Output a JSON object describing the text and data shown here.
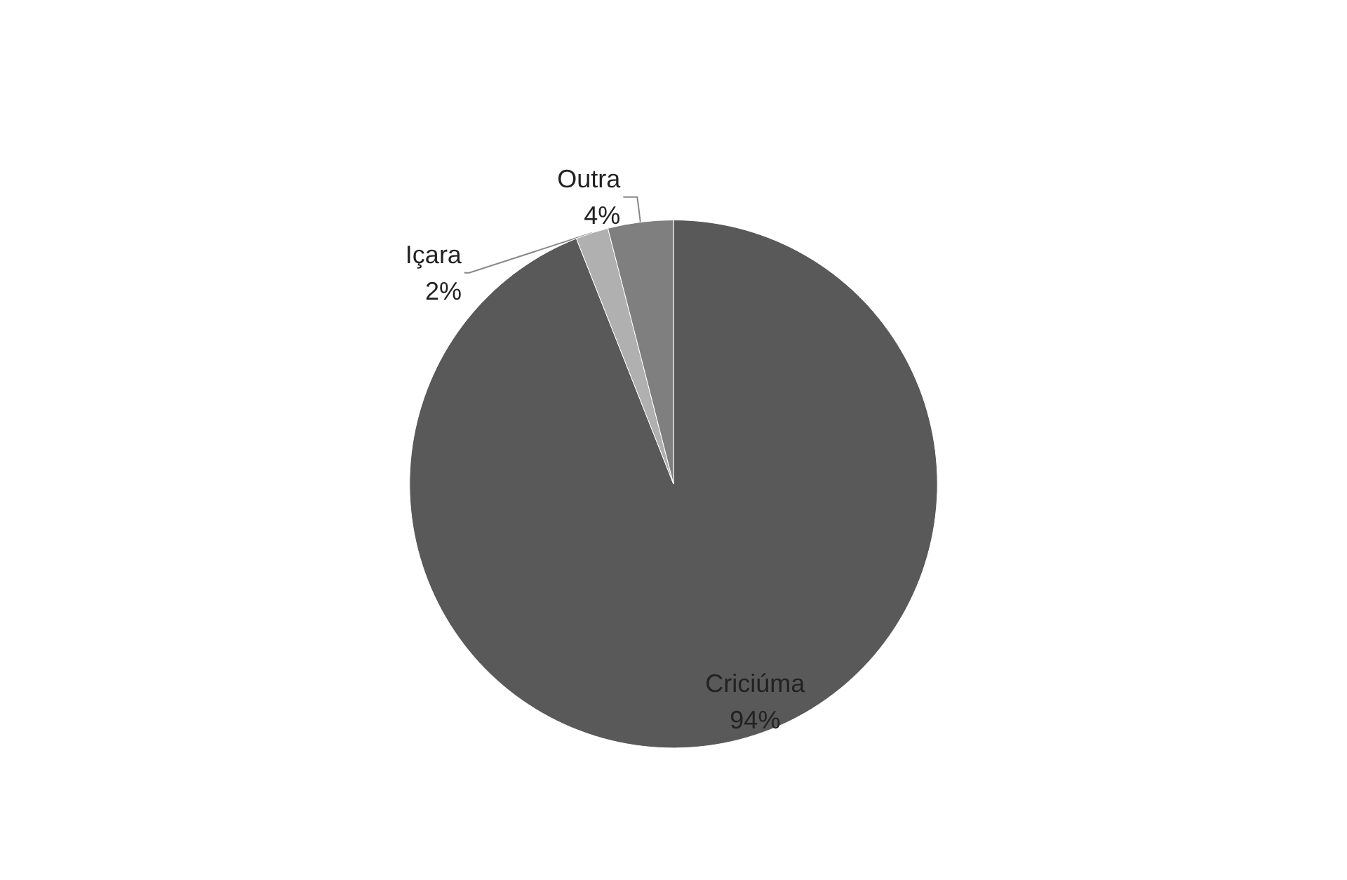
{
  "chart_data": {
    "type": "pie",
    "categories": [
      "Criciúma",
      "Içara",
      "Outra"
    ],
    "values": [
      94,
      2,
      4
    ],
    "value_labels": [
      "94%",
      "2%",
      "4%"
    ],
    "colors": [
      "#595959",
      "#b0b0b0",
      "#7f7f7f"
    ],
    "legend": false
  }
}
